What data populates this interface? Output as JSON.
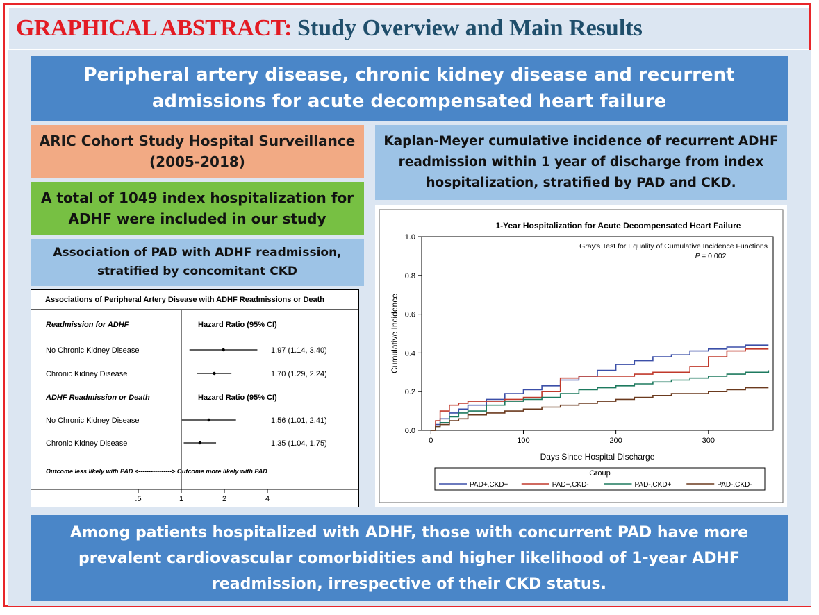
{
  "title": {
    "prefix": "GRAPHICAL ABSTRACT:",
    "main": "Study Overview and Main Results"
  },
  "headline": "Peripheral artery disease, chronic kidney disease and recurrent admissions for acute decompensated heart failure",
  "aric": "ARIC Cohort Study Hospital Surveillance (2005-2018)",
  "total": "A total of 1049 index hospitalization for ADHF were included in our study",
  "assoc": "Association of PAD with ADHF readmission, stratified by concomitant CKD",
  "km_heading": "Kaplan-Meyer cumulative incidence of recurrent ADHF readmission within 1 year of discharge from index hospitalization, stratified by PAD and CKD.",
  "conclusion": "Among patients hospitalized with ADHF, those with concurrent PAD have more prevalent cardiovascular comorbidities and higher likelihood of 1-year ADHF readmission, irrespective of their CKD status.",
  "colors": {
    "title_red": "#e31b23",
    "title_navy": "#1f4e6b",
    "blue_box": "#4a86c8",
    "light_blue_box": "#9dc3e6",
    "orange_box": "#f2aa84",
    "green_box": "#77c043",
    "panel_bg": "#dce6f2",
    "frame_red": "#e8262a"
  },
  "chart_data": [
    {
      "type": "scatter",
      "title": "Associations of Peripheral Artery Disease with ADHF Readmissions or Death",
      "x_scale": "log",
      "xticks": [
        ".5",
        "1",
        "2",
        "4"
      ],
      "x_tick_values": [
        0.5,
        1,
        2,
        4
      ],
      "reference_line": 1,
      "direction_label": "Outcome less likely with PAD <----------------> Outcome more likely with PAD",
      "sections": [
        {
          "heading": "Readmission for ADHF",
          "column_header": "Hazard Ratio (95% CI)",
          "rows": [
            {
              "label": "No Chronic Kidney Disease",
              "hr": 1.97,
              "lo": 1.14,
              "hi": 3.4,
              "text": "1.97 (1.14, 3.40)"
            },
            {
              "label": "Chronic Kidney Disease",
              "hr": 1.7,
              "lo": 1.29,
              "hi": 2.24,
              "text": "1.70 (1.29, 2.24)"
            }
          ]
        },
        {
          "heading": "ADHF Readmission or Death",
          "column_header": "Hazard Ratio (95% CI)",
          "rows": [
            {
              "label": "No Chronic Kidney Disease",
              "hr": 1.56,
              "lo": 1.01,
              "hi": 2.41,
              "text": "1.56 (1.01, 2.41)"
            },
            {
              "label": "Chronic Kidney Disease",
              "hr": 1.35,
              "lo": 1.04,
              "hi": 1.75,
              "text": "1.35 (1.04, 1.75)"
            }
          ]
        }
      ]
    },
    {
      "type": "line",
      "step": true,
      "title": "1-Year Hospitalization for Acute Decompensated Heart Failure",
      "xlabel": "Days Since Hospital Discharge",
      "ylabel": "Cumulative Incidence",
      "xlim": [
        -10,
        370
      ],
      "ylim": [
        0,
        1.0
      ],
      "xticks": [
        0,
        100,
        200,
        300
      ],
      "yticks": [
        "0.0",
        "0.2",
        "0.4",
        "0.6",
        "0.8",
        "1.0"
      ],
      "annotation": "Gray's Test for Equality of Cumulative Incidence Functions",
      "p_label": "P",
      "p_value": "= 0.002",
      "legend_title": "Group",
      "legend_position": "bottom",
      "series": [
        {
          "name": "PAD+,CKD+",
          "color": "#3b4fa8",
          "x": [
            0,
            5,
            10,
            20,
            30,
            40,
            60,
            80,
            100,
            120,
            140,
            160,
            180,
            200,
            220,
            240,
            260,
            280,
            300,
            320,
            340,
            365
          ],
          "y": [
            0,
            0.03,
            0.06,
            0.09,
            0.11,
            0.13,
            0.16,
            0.19,
            0.21,
            0.23,
            0.26,
            0.28,
            0.31,
            0.34,
            0.36,
            0.38,
            0.39,
            0.41,
            0.42,
            0.43,
            0.44,
            0.44
          ]
        },
        {
          "name": "PAD+,CKD-",
          "color": "#c0392b",
          "x": [
            0,
            5,
            10,
            20,
            30,
            40,
            60,
            80,
            100,
            120,
            140,
            160,
            180,
            200,
            220,
            240,
            260,
            280,
            300,
            320,
            340,
            365
          ],
          "y": [
            0,
            0.05,
            0.1,
            0.13,
            0.14,
            0.15,
            0.15,
            0.16,
            0.17,
            0.2,
            0.27,
            0.28,
            0.28,
            0.28,
            0.29,
            0.3,
            0.3,
            0.33,
            0.38,
            0.41,
            0.42,
            0.42
          ]
        },
        {
          "name": "PAD-,CKD+",
          "color": "#1e7a5f",
          "x": [
            0,
            5,
            10,
            20,
            30,
            40,
            60,
            80,
            100,
            120,
            140,
            160,
            180,
            200,
            220,
            240,
            260,
            280,
            300,
            320,
            340,
            365
          ],
          "y": [
            0,
            0.02,
            0.04,
            0.07,
            0.09,
            0.1,
            0.13,
            0.15,
            0.16,
            0.17,
            0.19,
            0.21,
            0.22,
            0.23,
            0.24,
            0.25,
            0.26,
            0.27,
            0.28,
            0.29,
            0.3,
            0.31
          ]
        },
        {
          "name": "PAD-,CKD-",
          "color": "#6b3a1e",
          "x": [
            0,
            5,
            10,
            20,
            30,
            40,
            60,
            80,
            100,
            120,
            140,
            160,
            180,
            200,
            220,
            240,
            260,
            280,
            300,
            320,
            340,
            365
          ],
          "y": [
            0,
            0.02,
            0.03,
            0.05,
            0.06,
            0.08,
            0.09,
            0.1,
            0.11,
            0.12,
            0.13,
            0.14,
            0.15,
            0.16,
            0.17,
            0.18,
            0.19,
            0.19,
            0.2,
            0.21,
            0.22,
            0.22
          ]
        }
      ]
    }
  ]
}
